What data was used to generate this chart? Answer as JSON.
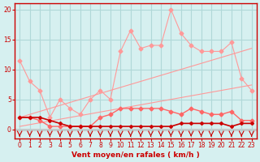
{
  "x": [
    0,
    1,
    2,
    3,
    4,
    5,
    6,
    7,
    8,
    9,
    10,
    11,
    12,
    13,
    14,
    15,
    16,
    17,
    18,
    19,
    20,
    21,
    22,
    23
  ],
  "line_rafales": [
    11.5,
    8.0,
    6.5,
    2.0,
    5.0,
    3.5,
    2.5,
    5.0,
    6.5,
    5.0,
    13.0,
    16.5,
    13.5,
    14.0,
    14.0,
    20.0,
    16.0,
    14.0,
    13.0,
    13.0,
    13.0,
    14.5,
    8.5,
    6.5
  ],
  "line_trend_high": [
    2.0,
    2.5,
    3.0,
    3.5,
    4.0,
    4.5,
    5.0,
    5.5,
    6.0,
    6.5,
    7.0,
    7.5,
    8.0,
    8.5,
    9.0,
    9.5,
    10.0,
    10.5,
    11.0,
    11.5,
    12.0,
    12.5,
    13.0,
    13.5
  ],
  "line_trend_low": [
    0.5,
    0.8,
    1.1,
    1.4,
    1.7,
    2.0,
    2.3,
    2.6,
    2.9,
    3.2,
    3.5,
    3.8,
    4.1,
    4.4,
    4.7,
    5.0,
    5.3,
    5.6,
    5.9,
    6.2,
    6.5,
    6.8,
    7.1,
    7.4
  ],
  "line_moyen": [
    2.0,
    2.0,
    1.5,
    0.5,
    0.5,
    0.5,
    0.5,
    0.5,
    2.0,
    2.5,
    3.5,
    3.5,
    3.5,
    3.5,
    3.5,
    3.0,
    2.5,
    3.5,
    3.0,
    2.5,
    2.5,
    3.0,
    1.5,
    1.5
  ],
  "line_bottom": [
    2.0,
    2.0,
    2.0,
    1.5,
    1.0,
    0.5,
    0.5,
    0.5,
    0.5,
    0.5,
    0.5,
    0.5,
    0.5,
    0.5,
    0.5,
    0.5,
    1.0,
    1.0,
    1.0,
    1.0,
    1.0,
    0.5,
    1.0,
    1.0
  ],
  "bg_color": "#d6f0f0",
  "grid_color": "#b0d8d8",
  "line_color_light": "#ff9999",
  "line_color_mid": "#ff6666",
  "line_color_dark": "#cc0000",
  "arrow_color": "#cc0000",
  "xlabel": "Vent moyen/en rafales ( km/h )",
  "ylabel_ticks": [
    0,
    5,
    10,
    15,
    20
  ],
  "xlim": [
    -0.5,
    23.5
  ],
  "ylim": [
    -1.5,
    21
  ]
}
